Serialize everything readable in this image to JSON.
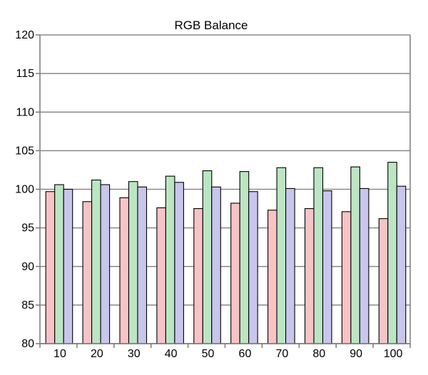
{
  "chart_data": {
    "type": "bar",
    "title": "RGB Balance",
    "xlabel": "",
    "ylabel": "",
    "categories": [
      "10",
      "20",
      "30",
      "40",
      "50",
      "60",
      "70",
      "80",
      "90",
      "100"
    ],
    "series": [
      {
        "values": [
          99.7,
          98.4,
          98.9,
          97.6,
          97.5,
          98.2,
          97.3,
          97.5,
          97.1,
          96.2
        ],
        "color": "#f7c3c7"
      },
      {
        "values": [
          100.6,
          101.2,
          101.0,
          101.7,
          102.4,
          102.3,
          102.8,
          102.8,
          102.9,
          103.5
        ],
        "color": "#bce5c4"
      },
      {
        "values": [
          100.0,
          100.6,
          100.3,
          100.9,
          100.3,
          99.7,
          100.1,
          99.8,
          100.1,
          100.4
        ],
        "color": "#c8c6ec"
      }
    ],
    "ylim": [
      80,
      120
    ],
    "yticks": [
      "80",
      "85",
      "90",
      "95",
      "100",
      "105",
      "110",
      "115",
      "120"
    ],
    "grid": true,
    "legend": "none",
    "colors": {
      "gridline": "#8a8a8a",
      "axis": "#7a7a7a",
      "bar_outline": "#000000"
    }
  }
}
